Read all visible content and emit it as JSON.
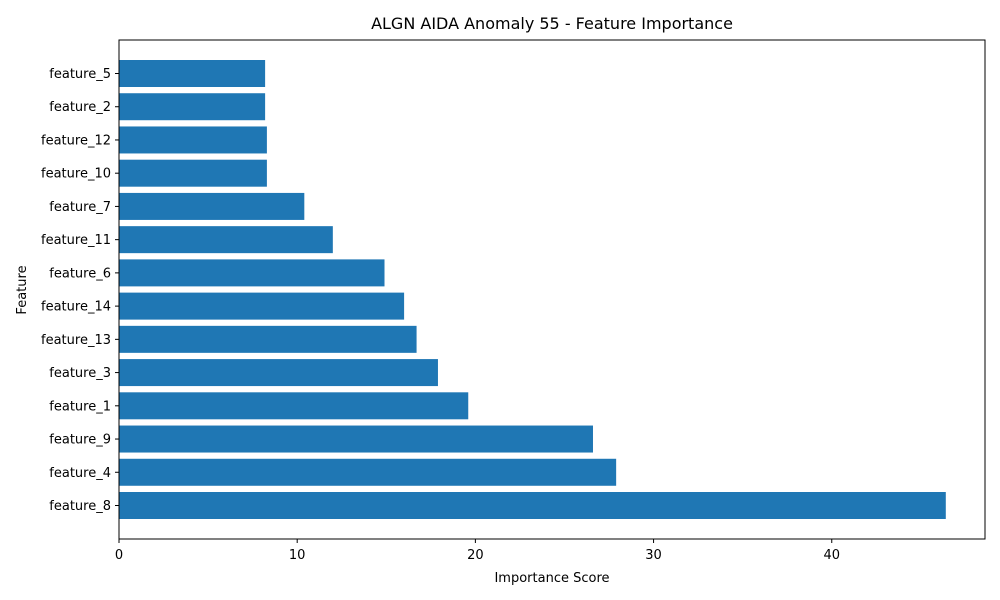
{
  "chart_data": {
    "type": "bar",
    "orientation": "horizontal",
    "title": "ALGN AIDA Anomaly 55 - Feature Importance",
    "xlabel": "Importance Score",
    "ylabel": "Feature",
    "categories": [
      "feature_8",
      "feature_4",
      "feature_9",
      "feature_1",
      "feature_3",
      "feature_13",
      "feature_14",
      "feature_6",
      "feature_11",
      "feature_7",
      "feature_10",
      "feature_12",
      "feature_2",
      "feature_5"
    ],
    "values": [
      46.4,
      27.9,
      26.6,
      19.6,
      17.9,
      16.7,
      16.0,
      14.9,
      12.0,
      10.4,
      8.3,
      8.3,
      8.2,
      8.2
    ],
    "xlim": [
      0,
      48.6
    ],
    "xticks": [
      0,
      10,
      20,
      30,
      40
    ],
    "bar_color": "#1f77b4",
    "grid": false,
    "legend": "none"
  }
}
